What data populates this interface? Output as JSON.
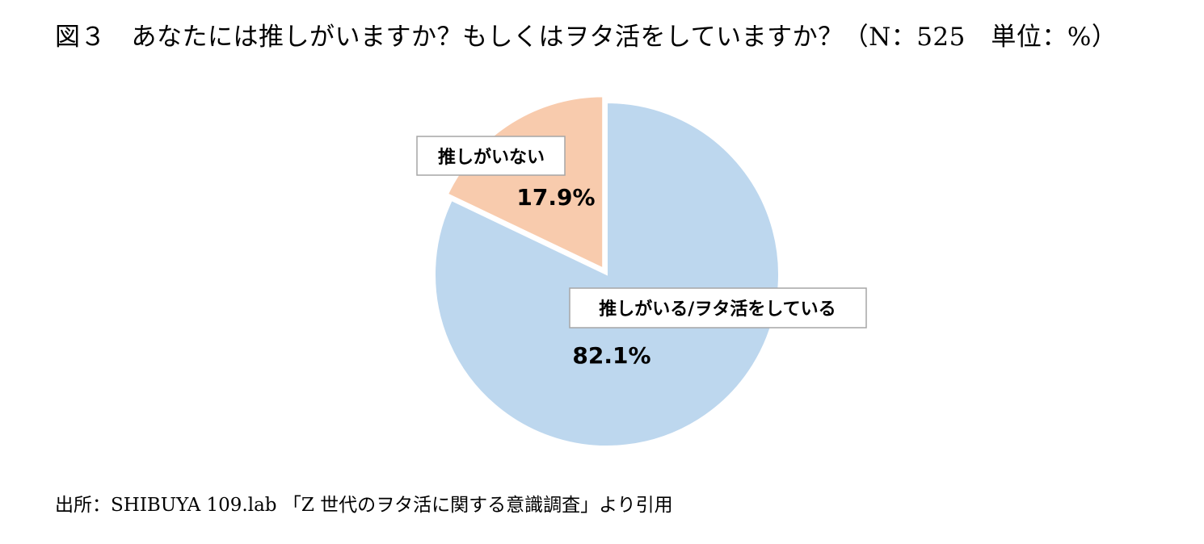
{
  "title": "図３　あなたには推しがいますか？もしくはヲタ活をしていますか？（N：525　単位：%）",
  "source": "出所：SHIBUYA 109.lab 「Z 世代のヲタ活に関する意識調査」より引用",
  "chart_data": {
    "type": "pie",
    "title": "図３　あなたには推しがいますか？もしくはヲタ活をしていますか？（N：525　単位：%）",
    "slices": [
      {
        "label": "推しがいる/ヲタ活をしている",
        "value": 82.1,
        "value_label": "82.1%",
        "color": "#bdd7ee",
        "exploded": false
      },
      {
        "label": "推しがいない",
        "value": 17.9,
        "value_label": "17.9%",
        "color": "#f8cbad",
        "exploded": true
      }
    ],
    "legend": "none",
    "start_angle": "12 o'clock",
    "direction": "clockwise"
  }
}
